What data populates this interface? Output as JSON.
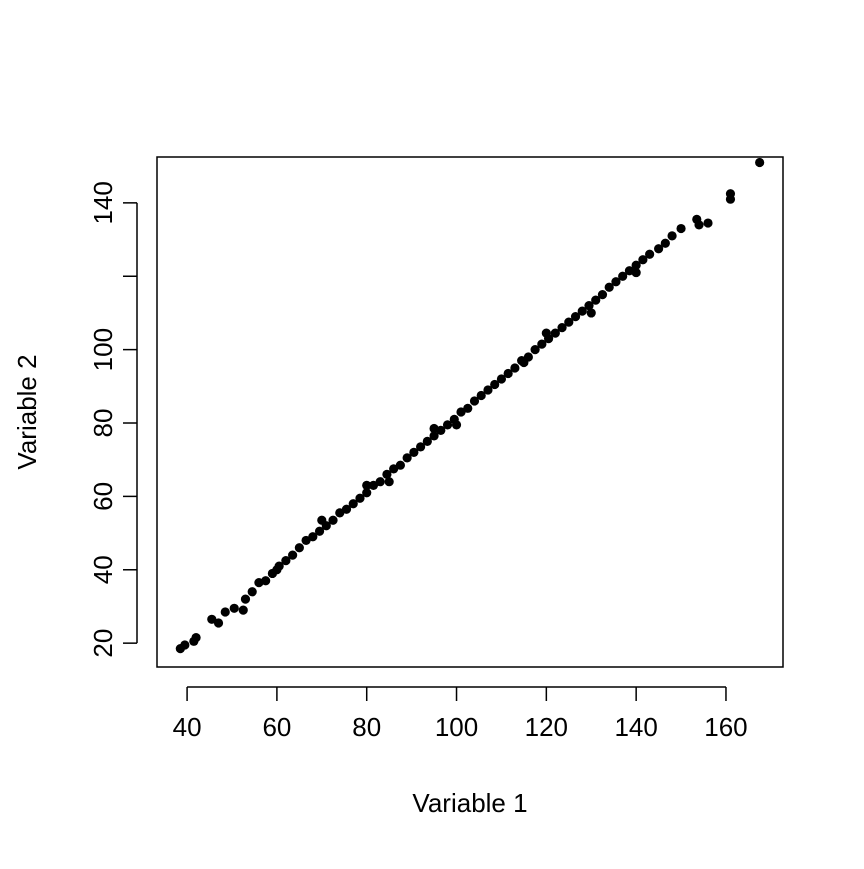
{
  "chart_data": {
    "type": "scatter",
    "x_label": "Variable 1",
    "y_label": "Variable 2",
    "color": "#000000",
    "xlim": [
      33.3,
      172.7
    ],
    "ylim": [
      13.5,
      152.5
    ],
    "xticks": [
      40,
      60,
      80,
      100,
      120,
      140,
      160
    ],
    "yticks": [
      20,
      40,
      60,
      80,
      100,
      {
        "value": 120,
        "label": null
      },
      140
    ],
    "x": [
      38.5,
      39.5,
      42,
      41.5,
      45.5,
      47,
      48.5,
      50.5,
      52.5,
      53,
      54.5,
      56,
      57.5,
      59,
      60.5,
      62,
      63.5,
      65,
      66.5,
      68,
      69.5,
      71,
      72.5,
      74,
      75.5,
      77,
      78.5,
      80,
      81.5,
      83,
      84.5,
      86,
      87.5,
      89,
      90.5,
      92,
      93.5,
      95,
      96.5,
      98,
      99.5,
      101,
      102.5,
      104,
      105.5,
      107,
      108.5,
      110,
      111.5,
      113,
      114.5,
      116,
      117.5,
      119,
      120.5,
      122,
      123.5,
      125,
      126.5,
      128,
      129.5,
      131,
      132.5,
      134,
      135.5,
      137,
      138.5,
      140,
      141.5,
      143,
      145,
      146.5,
      148,
      150,
      153.5,
      154,
      156,
      161,
      161,
      167.5,
      70,
      85,
      100,
      115,
      130,
      95,
      80,
      60,
      120,
      140
    ],
    "y": [
      18.5,
      19.5,
      21.5,
      20.5,
      26.5,
      25.5,
      28.5,
      29.5,
      29,
      32,
      34,
      36.5,
      37,
      39,
      41,
      42.5,
      44,
      46,
      48,
      49,
      50.5,
      52,
      53.5,
      55.5,
      56.5,
      58,
      59.5,
      61,
      63,
      64,
      66,
      67.5,
      68.5,
      70.5,
      72,
      73.5,
      75,
      76.5,
      78,
      79.5,
      81,
      83,
      84,
      86,
      87.5,
      89,
      90.5,
      92,
      93.5,
      95,
      97,
      98,
      100,
      101.5,
      103,
      104.5,
      106,
      107.5,
      109,
      110.5,
      112,
      113.5,
      115,
      117,
      118.5,
      120,
      121.5,
      123,
      124.5,
      126,
      127.5,
      129,
      131,
      133,
      135.5,
      134,
      134.5,
      141,
      142.5,
      151,
      53.5,
      64,
      79.5,
      96.5,
      110,
      78.5,
      63,
      40,
      104.5,
      121
    ]
  }
}
